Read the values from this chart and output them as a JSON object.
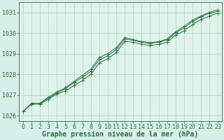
{
  "title": "Graphe pression niveau de la mer (hPa)",
  "background_color": "#d6efe9",
  "plot_bg_color": "#dff2ec",
  "line_color": "#2d6e3e",
  "grid_color": "#b0d4c8",
  "hours": [
    0,
    1,
    2,
    3,
    4,
    5,
    6,
    7,
    8,
    9,
    10,
    11,
    12,
    13,
    14,
    15,
    16,
    17,
    18,
    19,
    20,
    21,
    22,
    23
  ],
  "line1": [
    1026.2,
    1026.55,
    1026.55,
    1026.8,
    1027.05,
    1027.2,
    1027.45,
    1027.7,
    1028.0,
    1028.55,
    1028.75,
    1029.05,
    1029.6,
    1029.55,
    1029.45,
    1029.4,
    1029.45,
    1029.55,
    1029.9,
    1030.1,
    1030.4,
    1030.65,
    1030.82,
    1030.95
  ],
  "line2": [
    1026.2,
    1026.6,
    1026.6,
    1026.85,
    1027.1,
    1027.3,
    1027.6,
    1027.85,
    1028.15,
    1028.7,
    1028.9,
    1029.2,
    1029.7,
    1029.65,
    1029.55,
    1029.5,
    1029.55,
    1029.65,
    1030.0,
    1030.25,
    1030.55,
    1030.78,
    1030.95,
    1031.05
  ],
  "line3": [
    1026.2,
    1026.6,
    1026.6,
    1026.9,
    1027.15,
    1027.35,
    1027.65,
    1027.95,
    1028.25,
    1028.82,
    1029.0,
    1029.28,
    1029.78,
    1029.68,
    1029.58,
    1029.53,
    1029.58,
    1029.7,
    1030.05,
    1030.32,
    1030.62,
    1030.82,
    1031.0,
    1031.12
  ],
  "ylim": [
    1025.75,
    1031.5
  ],
  "yticks": [
    1026,
    1027,
    1028,
    1029,
    1030,
    1031
  ],
  "xlim": [
    -0.5,
    23.5
  ],
  "xticks": [
    0,
    1,
    2,
    3,
    4,
    5,
    6,
    7,
    8,
    9,
    10,
    11,
    12,
    13,
    14,
    15,
    16,
    17,
    18,
    19,
    20,
    21,
    22,
    23
  ],
  "title_fontsize": 7,
  "tick_fontsize": 6,
  "markersize": 2,
  "linewidth": 0.7
}
